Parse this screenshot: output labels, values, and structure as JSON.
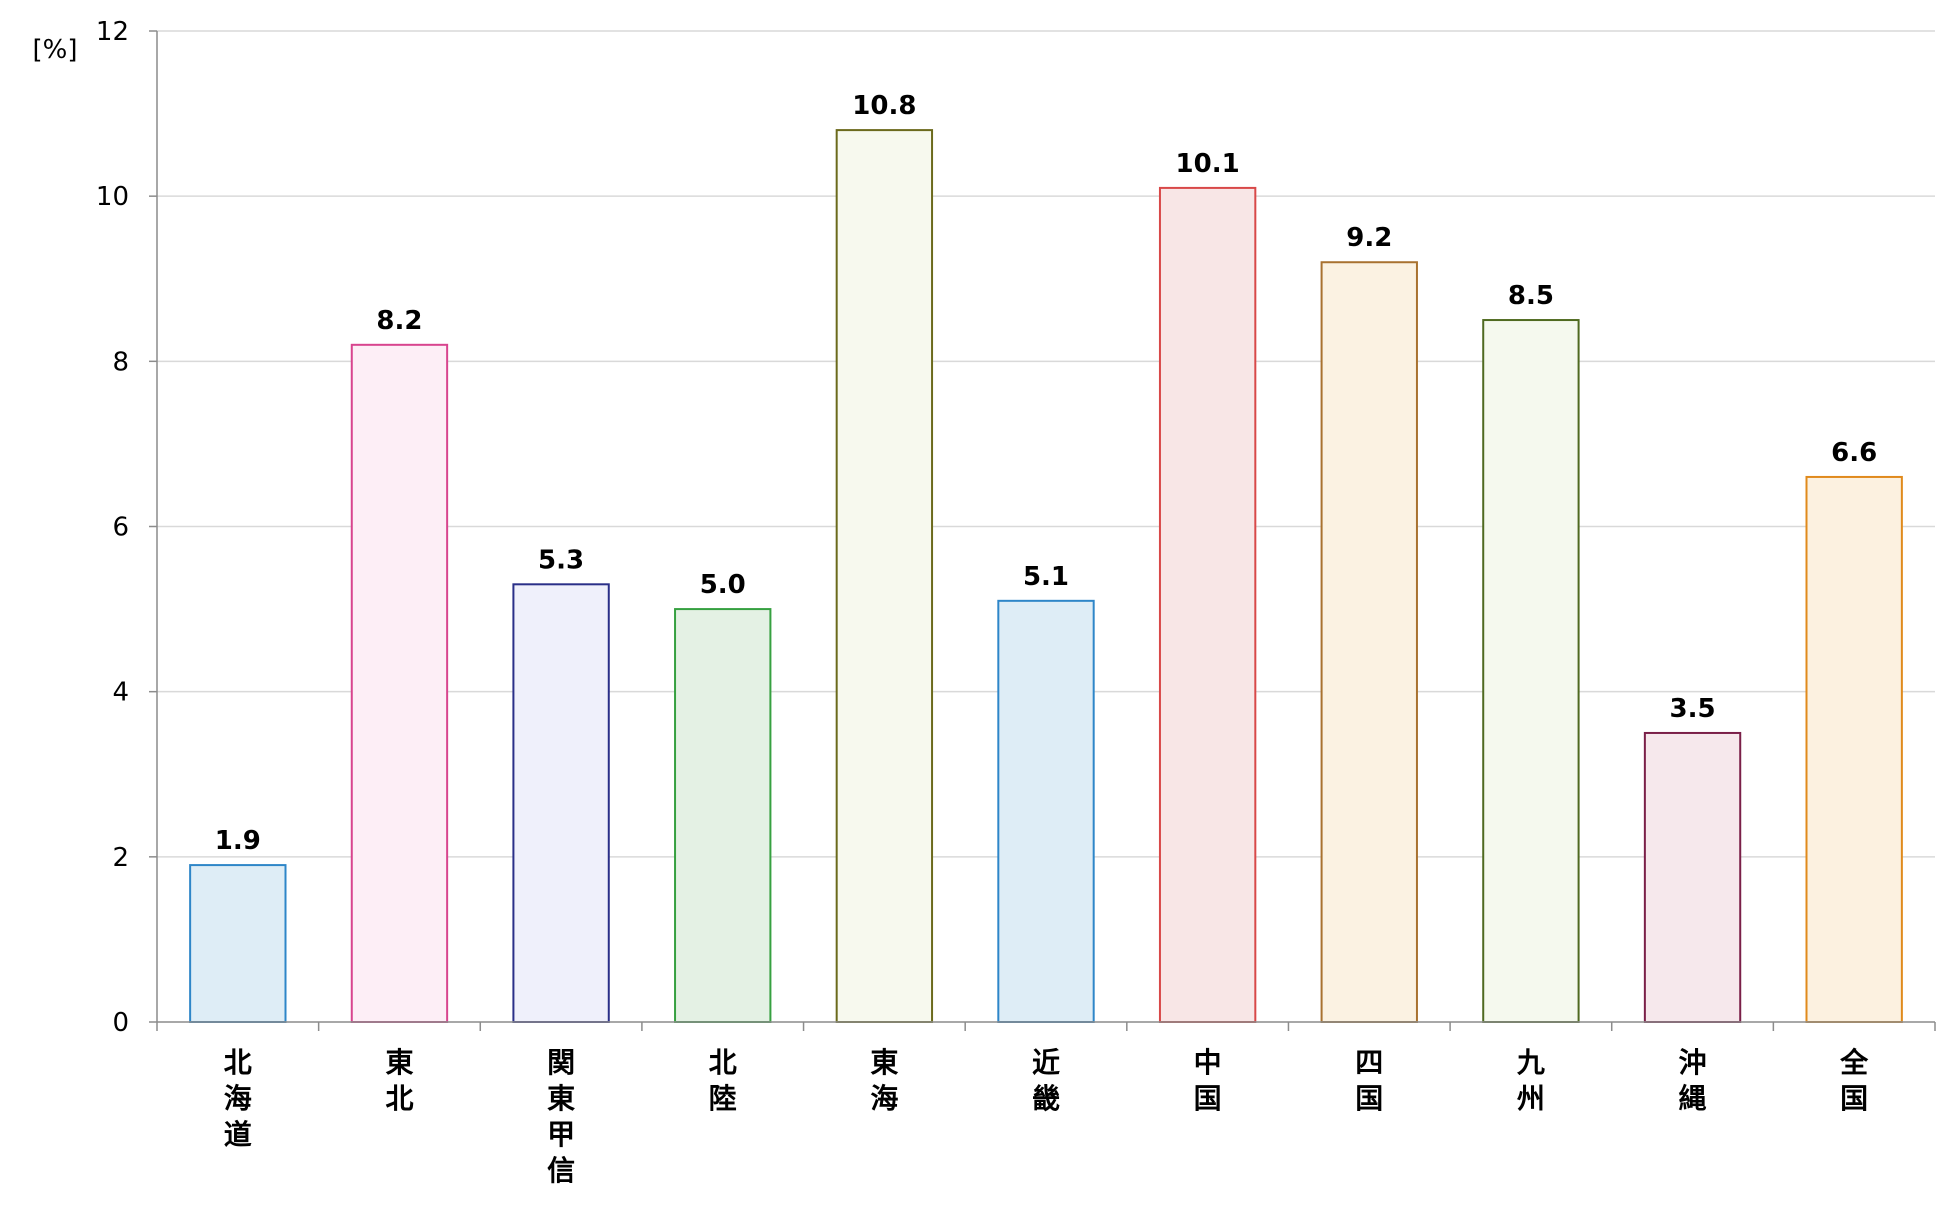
{
  "chart_data": {
    "type": "bar",
    "unit_label": "[%]",
    "categories": [
      "北海道",
      "東北",
      "関東甲信",
      "北陸",
      "東海",
      "近畿",
      "中国",
      "四国",
      "九州",
      "沖縄",
      "全国"
    ],
    "values": [
      1.9,
      8.2,
      5.3,
      5.0,
      10.8,
      5.1,
      10.1,
      9.2,
      8.5,
      3.5,
      6.6
    ],
    "value_labels": [
      "1.9",
      "8.2",
      "5.3",
      "5.0",
      "10.8",
      "5.1",
      "10.1",
      "9.2",
      "8.5",
      "3.5",
      "6.6"
    ],
    "ylim": [
      0,
      12
    ],
    "yticks": [
      0,
      2,
      4,
      6,
      8,
      10,
      12
    ],
    "grid": true,
    "legend": "none",
    "bar_colors": [
      {
        "fill": "#deedf6",
        "stroke": "#2e86c8"
      },
      {
        "fill": "#fdeef6",
        "stroke": "#d8448e"
      },
      {
        "fill": "#eff0fb",
        "stroke": "#2a2f88"
      },
      {
        "fill": "#e4f1e4",
        "stroke": "#36a040"
      },
      {
        "fill": "#f7f9ee",
        "stroke": "#6b6a1c"
      },
      {
        "fill": "#deedf6",
        "stroke": "#2e86c8"
      },
      {
        "fill": "#f8e6e6",
        "stroke": "#d84848"
      },
      {
        "fill": "#fbf2e2",
        "stroke": "#a87230"
      },
      {
        "fill": "#f5f9ee",
        "stroke": "#4f6a20"
      },
      {
        "fill": "#f6e8ec",
        "stroke": "#7a1f48"
      },
      {
        "fill": "#fcf1e0",
        "stroke": "#e08a1c"
      }
    ]
  }
}
